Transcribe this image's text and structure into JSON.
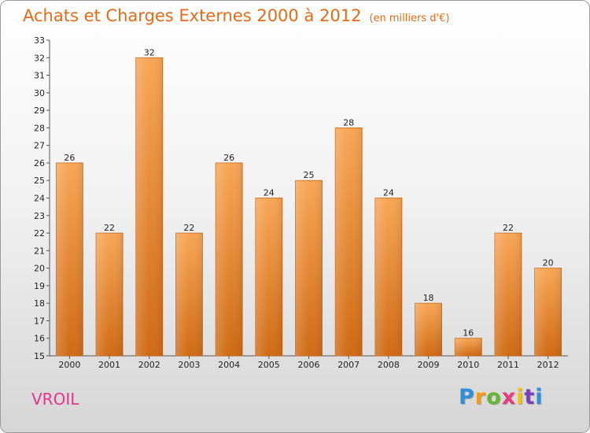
{
  "header": {
    "title": "Achats et Charges Externes 2000 à 2012",
    "unit": "(en milliers d'€)"
  },
  "footer": {
    "commune": "VROIL",
    "logo": [
      "P",
      "r",
      "o",
      "x",
      "i",
      "t",
      "i"
    ]
  },
  "colors": {
    "title": "#e86a16",
    "commune": "#e8348a",
    "bar_light": "#f8a655",
    "bar_dark": "#cf6a14"
  },
  "chart_data": {
    "type": "bar",
    "title": "Achats et Charges Externes 2000 à 2012",
    "subtitle": "(en milliers d'€)",
    "categories": [
      "2000",
      "2001",
      "2002",
      "2003",
      "2004",
      "2005",
      "2006",
      "2007",
      "2008",
      "2009",
      "2010",
      "2011",
      "2012"
    ],
    "values": [
      26,
      22,
      32,
      22,
      26,
      24,
      25,
      28,
      24,
      18,
      16,
      22,
      20
    ],
    "ylim": [
      15,
      33
    ],
    "yticks": [
      15,
      16,
      17,
      18,
      19,
      20,
      21,
      22,
      23,
      24,
      25,
      26,
      27,
      28,
      29,
      30,
      31,
      32,
      33
    ],
    "grid": false,
    "data_labels": true
  }
}
